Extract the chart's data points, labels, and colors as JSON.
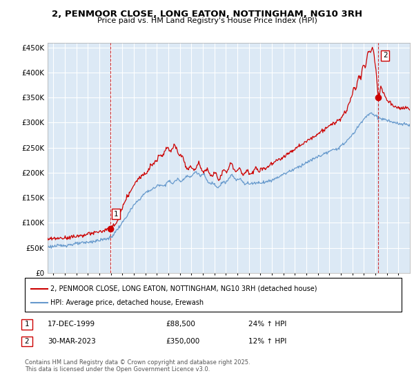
{
  "title": "2, PENMOOR CLOSE, LONG EATON, NOTTINGHAM, NG10 3RH",
  "subtitle": "Price paid vs. HM Land Registry's House Price Index (HPI)",
  "ylabel_ticks": [
    "£0",
    "£50K",
    "£100K",
    "£150K",
    "£200K",
    "£250K",
    "£300K",
    "£350K",
    "£400K",
    "£450K"
  ],
  "ytick_values": [
    0,
    50000,
    100000,
    150000,
    200000,
    250000,
    300000,
    350000,
    400000,
    450000
  ],
  "ylim": [
    0,
    460000
  ],
  "xlim_start": 1994.5,
  "xlim_end": 2026.0,
  "sale1_date": 1999.96,
  "sale1_price": 88500,
  "sale2_date": 2023.25,
  "sale2_price": 350000,
  "legend_line1": "2, PENMOOR CLOSE, LONG EATON, NOTTINGHAM, NG10 3RH (detached house)",
  "legend_line2": "HPI: Average price, detached house, Erewash",
  "table_row1": [
    "1",
    "17-DEC-1999",
    "£88,500",
    "24% ↑ HPI"
  ],
  "table_row2": [
    "2",
    "30-MAR-2023",
    "£350,000",
    "12% ↑ HPI"
  ],
  "footer": "Contains HM Land Registry data © Crown copyright and database right 2025.\nThis data is licensed under the Open Government Licence v3.0.",
  "line_color_red": "#cc0000",
  "line_color_blue": "#6699cc",
  "plot_bg_color": "#dce9f5",
  "background_color": "#ffffff",
  "grid_color": "#ffffff",
  "vline_color": "#cc0000",
  "marker_color_red": "#cc0000"
}
